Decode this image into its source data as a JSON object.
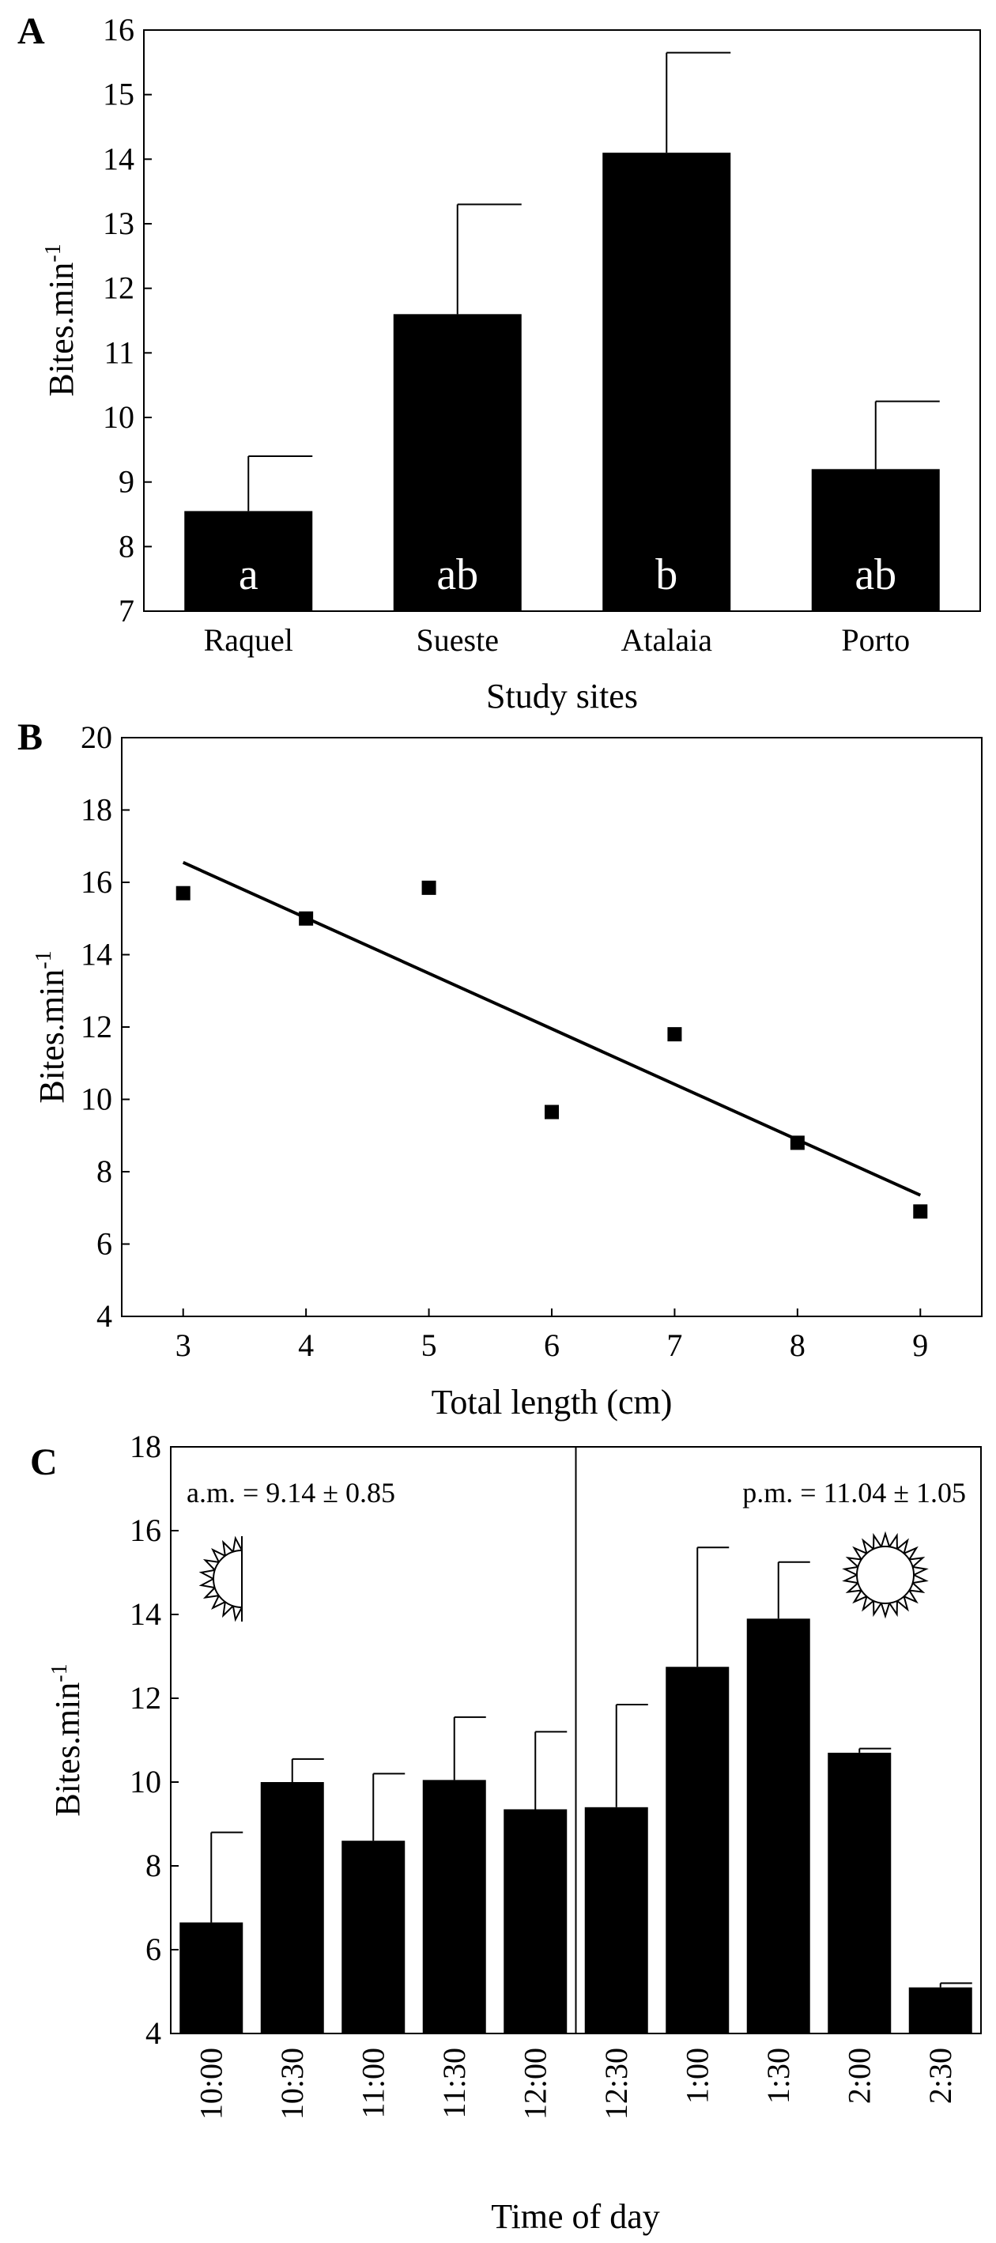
{
  "chart_data": [
    {
      "panel": "A",
      "type": "bar",
      "categories": [
        "Raquel",
        "Sueste",
        "Atalaia",
        "Porto"
      ],
      "values": [
        8.55,
        11.6,
        14.1,
        9.2
      ],
      "error_upper": [
        9.4,
        13.3,
        15.65,
        10.25
      ],
      "bar_labels": [
        "a",
        "ab",
        "b",
        "ab"
      ],
      "xlabel": "Study sites",
      "ylabel": "Bites.min",
      "ylabel_sup": "-1",
      "ylim": [
        7,
        16
      ],
      "yticks": [
        7,
        8,
        9,
        10,
        11,
        12,
        13,
        14,
        15,
        16
      ]
    },
    {
      "panel": "B",
      "type": "scatter",
      "points": [
        {
          "x": 3,
          "y": 15.7
        },
        {
          "x": 4,
          "y": 15.0
        },
        {
          "x": 5,
          "y": 15.85
        },
        {
          "x": 6,
          "y": 9.65
        },
        {
          "x": 7,
          "y": 11.8
        },
        {
          "x": 8,
          "y": 8.8
        },
        {
          "x": 9,
          "y": 6.9
        }
      ],
      "trendline": {
        "x": [
          3,
          9
        ],
        "y": [
          16.55,
          7.35
        ]
      },
      "xlabel": "Total length (cm)",
      "ylabel": "Bites.min",
      "ylabel_sup": "-1",
      "xlim": [
        2.5,
        9.5
      ],
      "xticks": [
        3,
        4,
        5,
        6,
        7,
        8,
        9
      ],
      "ylim": [
        4,
        20
      ],
      "yticks": [
        4,
        6,
        8,
        10,
        12,
        14,
        16,
        18,
        20
      ]
    },
    {
      "panel": "C",
      "type": "bar",
      "categories": [
        "10:00",
        "10:30",
        "11:00",
        "11:30",
        "12:00",
        "12:30",
        "1:00",
        "1:30",
        "2:00",
        "2:30"
      ],
      "values": [
        6.65,
        10.0,
        8.6,
        10.05,
        9.35,
        9.4,
        12.75,
        13.9,
        10.7,
        5.1
      ],
      "error_upper": [
        8.8,
        10.55,
        10.2,
        11.55,
        11.2,
        11.85,
        15.6,
        15.25,
        10.8,
        5.2
      ],
      "annotations": [
        "a.m. = 9.14 ± 0.85",
        "p.m. = 11.04 ± 1.05"
      ],
      "xlabel": "Time of day",
      "ylabel": "Bites.min",
      "ylabel_sup": "-1",
      "ylim": [
        4,
        18
      ],
      "yticks": [
        4,
        6,
        8,
        10,
        12,
        14,
        16,
        18
      ]
    }
  ]
}
